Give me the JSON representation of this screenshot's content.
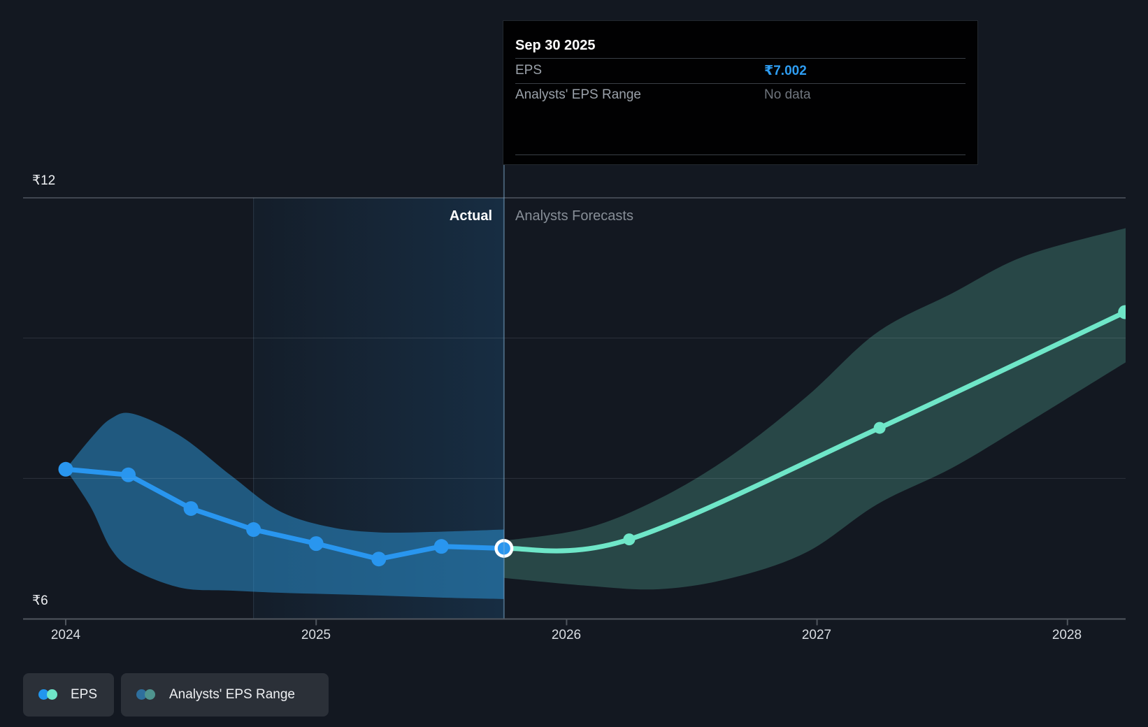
{
  "tooltip": {
    "title": "Sep 30 2025",
    "rows": [
      {
        "label": "EPS",
        "value": "₹7.002"
      },
      {
        "label": "Analysts' EPS Range",
        "value": "No data"
      }
    ]
  },
  "zones": {
    "actual_label": "Actual",
    "forecast_label": "Analysts Forecasts"
  },
  "y_axis": {
    "top_label": "₹12",
    "bottom_label": "₹6"
  },
  "x_axis": {
    "labels": [
      "2024",
      "2025",
      "2026",
      "2027",
      "2028"
    ]
  },
  "legend": [
    {
      "label": "EPS"
    },
    {
      "label": "Analysts' EPS Range"
    }
  ],
  "colors": {
    "background": "#131821",
    "eps_line": "#2996ef",
    "forecast_line": "#6fe6c8",
    "eps_band": "rgba(45,150,215,0.52)",
    "forecast_band": "rgba(111,230,200,0.23)",
    "tooltip_value_blue": "#2e9df2",
    "legend_dot_eps_a": "#2196ee",
    "legend_dot_eps_b": "#6fe6c8",
    "legend_dot_range_a": "#2e6f9d",
    "legend_dot_range_b": "#4f948e"
  },
  "chart_data": {
    "type": "line",
    "title": "EPS — Actual vs Analysts Forecasts",
    "currency": "₹",
    "ylim": [
      6,
      12
    ],
    "xlim": [
      2023.83,
      2028.235
    ],
    "y_gridlines": [
      12,
      10,
      8
    ],
    "y_tick_labels": [
      "₹12",
      "₹6"
    ],
    "x_ticks": [
      2024,
      2025,
      2026,
      2027,
      2028
    ],
    "divider_x": 2025.75,
    "highlight_range": [
      2024.75,
      2025.75
    ],
    "hovered_point": {
      "date": "Sep 30 2025",
      "eps": 7.002,
      "analysts_range": "No data"
    },
    "legend_position": "bottom-left",
    "grid": "horizontal-only",
    "series": [
      {
        "name": "EPS",
        "kind": "actual",
        "color": "#2996ef",
        "x": [
          2024.0,
          2024.25,
          2024.5,
          2024.75,
          2025.0,
          2025.25,
          2025.5,
          2025.75
        ],
        "y": [
          8.13,
          8.05,
          7.57,
          7.27,
          7.07,
          6.85,
          7.03,
          7.002
        ]
      },
      {
        "name": "EPS forecast",
        "kind": "forecast",
        "color": "#6fe6c8",
        "x": [
          2025.75,
          2026.25,
          2027.25,
          2028.23
        ],
        "y": [
          7.002,
          7.13,
          8.72,
          10.37
        ]
      }
    ],
    "bands": [
      {
        "name": "actual-eps-band",
        "color": "rgba(45,150,215,0.52)",
        "x": [
          2024.0,
          2024.1,
          2024.18,
          2024.27,
          2024.46,
          2024.66,
          2024.85,
          2025.05,
          2025.25,
          2025.5,
          2025.75
        ],
        "hi": [
          8.13,
          8.57,
          8.85,
          8.92,
          8.6,
          8.04,
          7.54,
          7.31,
          7.23,
          7.24,
          7.27
        ],
        "lo": [
          8.13,
          7.59,
          7.0,
          6.7,
          6.44,
          6.4,
          6.37,
          6.35,
          6.33,
          6.3,
          6.28
        ]
      },
      {
        "name": "analysts-eps-range-band",
        "color": "rgba(111,230,200,0.23)",
        "x": [
          2025.75,
          2026.08,
          2026.37,
          2026.66,
          2026.96,
          2027.24,
          2027.54,
          2027.83,
          2028.235
        ],
        "hi": [
          7.11,
          7.29,
          7.71,
          8.33,
          9.17,
          10.08,
          10.64,
          11.17,
          11.57
        ],
        "lo": [
          6.58,
          6.47,
          6.42,
          6.58,
          6.95,
          7.63,
          8.15,
          8.77,
          9.66
        ]
      }
    ]
  }
}
